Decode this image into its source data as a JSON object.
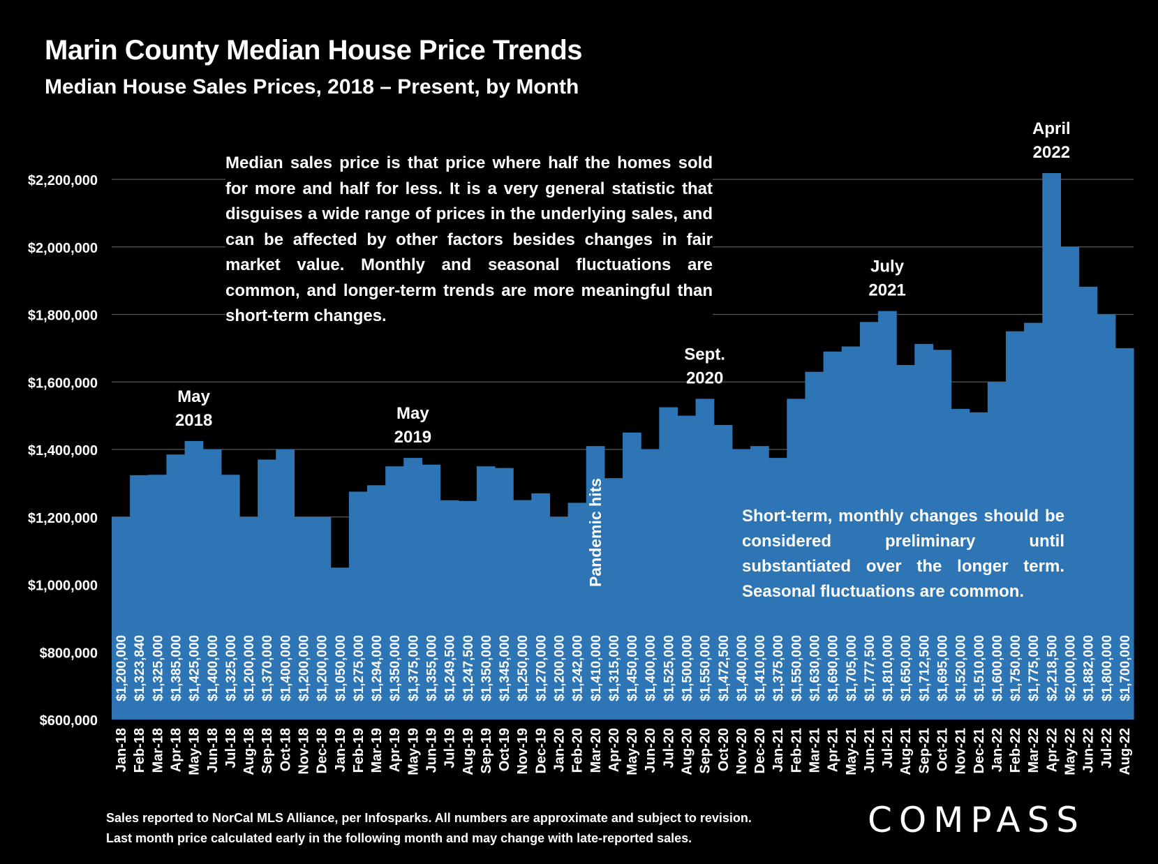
{
  "title": "Marin County Median House Price Trends",
  "subtitle": "Median House Sales Prices, 2018 – Present, by Month",
  "note_top": "Median sales price is that price where half the homes sold for more and half for less. It is a very general statistic that disguises a wide range of prices in the underlying sales, and can be affected by other factors besides changes in fair market value. Monthly and seasonal fluctuations are common, and longer-term trends are more meaningful than short-term changes.",
  "note_bottom": "Short-term, monthly changes should be considered preliminary until substantiated over the longer term. Seasonal fluctuations are common.",
  "footnote_line1": "Sales reported to NorCal MLS Alliance, per Infosparks. All numbers are approximate and subject to revision.",
  "footnote_line2": "Last month price calculated early in the following month and may change with late-reported sales.",
  "logo_text": "COMPASS",
  "colors": {
    "bar": "#2E75B6",
    "background": "#000000",
    "grid": "#595959",
    "text": "#FFFFFF"
  },
  "chart_data": {
    "type": "bar",
    "ylim": [
      600000,
      2200000
    ],
    "yticks": [
      600000,
      800000,
      1000000,
      1200000,
      1400000,
      1600000,
      1800000,
      2000000,
      2200000
    ],
    "ytick_labels": [
      "$600,000",
      "$800,000",
      "$1,000,000",
      "$1,200,000",
      "$1,400,000",
      "$1,600,000",
      "$1,800,000",
      "$2,000,000",
      "$2,200,000"
    ],
    "grid": true,
    "categories": [
      "Jan-18",
      "Feb-18",
      "Mar-18",
      "Apr-18",
      "May-18",
      "Jun-18",
      "Jul-18",
      "Aug-18",
      "Sep-18",
      "Oct-18",
      "Nov-18",
      "Dec-18",
      "Jan-19",
      "Feb-19",
      "Mar-19",
      "Apr-19",
      "May-19",
      "Jun-19",
      "Jul-19",
      "Aug-19",
      "Sep-19",
      "Oct-19",
      "Nov-19",
      "Dec-19",
      "Jan-20",
      "Feb-20",
      "Mar-20",
      "Apr-20",
      "May-20",
      "Jun-20",
      "Jul-20",
      "Aug-20",
      "Sep-20",
      "Oct-20",
      "Nov-20",
      "Dec-20",
      "Jan-21",
      "Feb-21",
      "Mar-21",
      "Apr-21",
      "May-21",
      "Jun-21",
      "Jul-21",
      "Aug-21",
      "Sep-21",
      "Oct-21",
      "Nov-21",
      "Dec-21",
      "Jan-22",
      "Feb-22",
      "Mar-22",
      "Apr-22",
      "May-22",
      "Jun-22",
      "Jul-22",
      "Aug-22"
    ],
    "values": [
      1200000,
      1323840,
      1325000,
      1385000,
      1425000,
      1400000,
      1325000,
      1200000,
      1370000,
      1400000,
      1200000,
      1200000,
      1050000,
      1275000,
      1294000,
      1350000,
      1375000,
      1355000,
      1249500,
      1247500,
      1350000,
      1345000,
      1250000,
      1270000,
      1200000,
      1242000,
      1410000,
      1315000,
      1450000,
      1400000,
      1525000,
      1500000,
      1550000,
      1472500,
      1400000,
      1410000,
      1375000,
      1550000,
      1630000,
      1690000,
      1705000,
      1777500,
      1810000,
      1650000,
      1712500,
      1695000,
      1520000,
      1510000,
      1600000,
      1750000,
      1775000,
      2218500,
      2000000,
      1882000,
      1800000,
      1700000
    ],
    "value_labels": [
      "$1,200,000",
      "$1,323,840",
      "$1,325,000",
      "$1,385,000",
      "$1,425,000",
      "$1,400,000",
      "$1,325,000",
      "$1,200,000",
      "$1,370,000",
      "$1,400,000",
      "$1,200,000",
      "$1,200,000",
      "$1,050,000",
      "$1,275,000",
      "$1,294,000",
      "$1,350,000",
      "$1,375,000",
      "$1,355,000",
      "$1,249,500",
      "$1,247,500",
      "$1,350,000",
      "$1,345,000",
      "$1,250,000",
      "$1,270,000",
      "$1,200,000",
      "$1,242,000",
      "$1,410,000",
      "$1,315,000",
      "$1,450,000",
      "$1,400,000",
      "$1,525,000",
      "$1,500,000",
      "$1,550,000",
      "$1,472,500",
      "$1,400,000",
      "$1,410,000",
      "$1,375,000",
      "$1,550,000",
      "$1,630,000",
      "$1,690,000",
      "$1,705,000",
      "$1,777,500",
      "$1,810,000",
      "$1,650,000",
      "$1,712,500",
      "$1,695,000",
      "$1,520,000",
      "$1,510,000",
      "$1,600,000",
      "$1,750,000",
      "$1,775,000",
      "$2,218,500",
      "$2,000,000",
      "$1,882,000",
      "$1,800,000",
      "$1,700,000"
    ],
    "annotations": [
      {
        "category": "May-18",
        "lines": [
          "May",
          "2018"
        ]
      },
      {
        "category": "May-19",
        "lines": [
          "May",
          "2019"
        ]
      },
      {
        "category": "Sep-20",
        "lines": [
          "Sept.",
          "2020"
        ]
      },
      {
        "category": "Jul-21",
        "lines": [
          "July",
          "2021"
        ]
      },
      {
        "category": "Apr-22",
        "lines": [
          "April",
          "2022"
        ]
      }
    ],
    "vertical_annotation": {
      "category": "Mar-20",
      "text": "Pandemic hits"
    }
  }
}
